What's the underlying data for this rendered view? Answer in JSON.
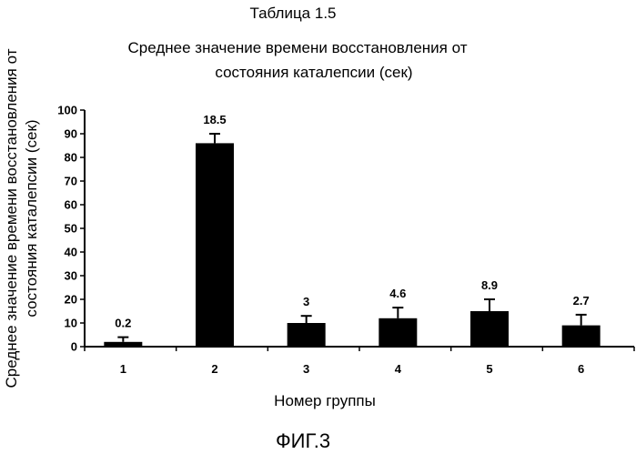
{
  "header": {
    "table_caption": "Таблица 1.5"
  },
  "figure_caption": "ФИГ.3",
  "chart_data": {
    "type": "bar",
    "title_lines": [
      "Среднее значение времени восстановления от",
      "состояния каталепсии (сек)"
    ],
    "ylabel_lines": [
      "Среднее значение времени восстановления от",
      "состояния каталепсии (сек)"
    ],
    "xlabel": "Номер группы",
    "categories": [
      "1",
      "2",
      "3",
      "4",
      "5",
      "6"
    ],
    "values": [
      2,
      86,
      10,
      12,
      15,
      9
    ],
    "error_bars": [
      4,
      90,
      13,
      16.5,
      20,
      13.5
    ],
    "data_labels": [
      "0.2",
      "18.5",
      "3",
      "4.6",
      "8.9",
      "2.7"
    ],
    "ylim": [
      0,
      100
    ],
    "yticks": [
      0,
      10,
      20,
      30,
      40,
      50,
      60,
      70,
      80,
      90,
      100
    ],
    "colors": {
      "bar": "#000000",
      "axis": "#000000",
      "background": "#ffffff"
    },
    "grid": false,
    "legend": "none"
  }
}
